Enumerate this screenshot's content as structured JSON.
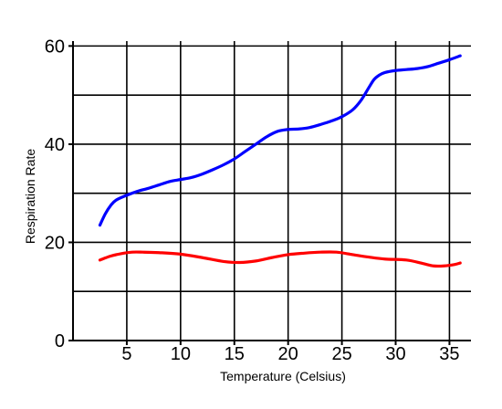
{
  "chart_data": {
    "type": "line",
    "title": "",
    "xlabel": "Temperature (Celsius)",
    "ylabel": "Respiration Rate",
    "xlim": [
      0,
      37
    ],
    "ylim": [
      0,
      61
    ],
    "grid": true,
    "x_ticks": [
      5,
      10,
      15,
      20,
      25,
      30,
      35
    ],
    "y_ticks": [
      0,
      20,
      40,
      60
    ],
    "x_tick_labels": [
      "5",
      "10",
      "15",
      "20",
      "25",
      "30",
      "35"
    ],
    "y_tick_labels": [
      "0",
      "20",
      "40",
      "60"
    ],
    "x_gridlines": [
      5,
      10,
      15,
      20,
      25,
      30,
      35
    ],
    "y_gridlines": [
      10,
      20,
      30,
      40,
      50,
      60
    ],
    "series": [
      {
        "color": "#0000ff",
        "x": [
          2.5,
          3.0,
          3.5,
          4.0,
          5.0,
          6.0,
          7.0,
          8.0,
          9.0,
          10.0,
          11.0,
          12.0,
          13.0,
          14.0,
          15.0,
          16.0,
          17.0,
          18.0,
          19.0,
          20.0,
          21.0,
          22.0,
          23.0,
          24.0,
          25.0,
          26.0,
          26.8,
          27.5,
          28.0,
          28.5,
          29.0,
          30.0,
          31.0,
          32.0,
          33.0,
          34.0,
          35.0,
          36.0
        ],
        "y": [
          23.5,
          25.8,
          27.5,
          28.6,
          29.6,
          30.4,
          31.0,
          31.7,
          32.4,
          32.8,
          33.2,
          33.9,
          34.8,
          35.8,
          37.0,
          38.5,
          40.0,
          41.5,
          42.6,
          43.0,
          43.1,
          43.4,
          44.0,
          44.7,
          45.6,
          47.0,
          49.0,
          51.5,
          53.2,
          54.1,
          54.6,
          55.0,
          55.2,
          55.4,
          55.8,
          56.5,
          57.2,
          58.0
        ]
      },
      {
        "color": "#ff0000",
        "x": [
          2.5,
          3.5,
          4.5,
          5.5,
          6.5,
          8.0,
          10.0,
          12.0,
          14.0,
          15.5,
          17.0,
          18.5,
          20.0,
          21.5,
          23.0,
          24.5,
          26.0,
          27.5,
          29.0,
          31.0,
          32.5,
          33.5,
          34.5,
          35.5,
          36.0
        ],
        "y": [
          16.4,
          17.2,
          17.7,
          18.0,
          18.0,
          17.9,
          17.6,
          16.9,
          16.1,
          15.9,
          16.2,
          16.9,
          17.5,
          17.8,
          18.0,
          18.0,
          17.5,
          17.0,
          16.6,
          16.4,
          15.7,
          15.2,
          15.2,
          15.5,
          15.8
        ]
      }
    ]
  }
}
